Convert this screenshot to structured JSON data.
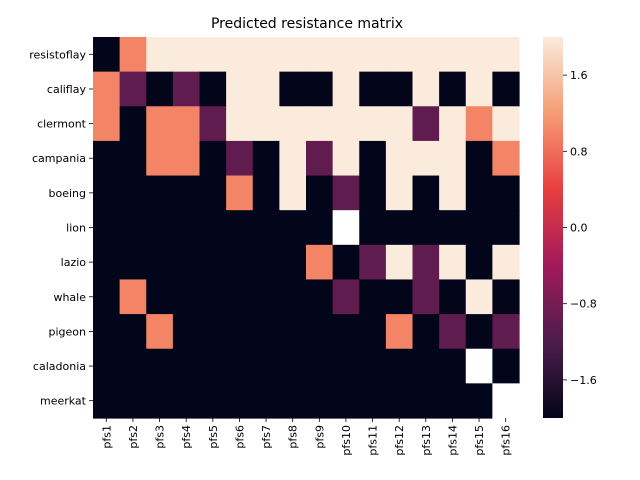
{
  "chart_data": {
    "type": "heatmap",
    "title": "Predicted resistance matrix",
    "xlabel": "",
    "ylabel": "",
    "x": [
      "pfs1",
      "pfs2",
      "pfs3",
      "pfs4",
      "pfs5",
      "pfs6",
      "pfs7",
      "pfs8",
      "pfs9",
      "pfs10",
      "pfs11",
      "pfs12",
      "pfs13",
      "pfs14",
      "pfs15",
      "pfs16"
    ],
    "y": [
      "resistoflay",
      "califlay",
      "clermont",
      "campania",
      "boeing",
      "lion",
      "lazio",
      "whale",
      "pigeon",
      "caladonia",
      "meerkat"
    ],
    "values": [
      [
        -2,
        1,
        2,
        2,
        2,
        2,
        2,
        2,
        2,
        2,
        2,
        2,
        2,
        2,
        2,
        2
      ],
      [
        1,
        -1,
        -2,
        -1,
        -2,
        2,
        2,
        -2,
        -2,
        2,
        -2,
        -2,
        2,
        -2,
        2,
        -2
      ],
      [
        1,
        -2,
        1,
        1,
        -1,
        2,
        2,
        2,
        2,
        2,
        2,
        2,
        -1,
        2,
        1,
        2
      ],
      [
        -2,
        -2,
        1,
        1,
        -2,
        -1,
        -2,
        2,
        -1,
        2,
        -2,
        2,
        2,
        2,
        -2,
        1
      ],
      [
        -2,
        -2,
        -2,
        -2,
        -2,
        1,
        -2,
        2,
        -2,
        -1,
        -2,
        2,
        -2,
        2,
        -2,
        -2
      ],
      [
        -2,
        -2,
        -2,
        -2,
        -2,
        -2,
        -2,
        -2,
        -2,
        null,
        -2,
        -2,
        -2,
        -2,
        -2,
        -2
      ],
      [
        -2,
        -2,
        -2,
        -2,
        -2,
        -2,
        -2,
        -2,
        1,
        -2,
        -1,
        2,
        -1,
        2,
        -2,
        2
      ],
      [
        -2,
        1,
        -2,
        -2,
        -2,
        -2,
        -2,
        -2,
        -2,
        -1,
        -2,
        -2,
        -1,
        -2,
        2,
        -2
      ],
      [
        -2,
        -2,
        1,
        -2,
        -2,
        -2,
        -2,
        -2,
        -2,
        -2,
        -2,
        1,
        -2,
        -1,
        -2,
        -1
      ],
      [
        -2,
        -2,
        -2,
        -2,
        -2,
        -2,
        -2,
        -2,
        -2,
        -2,
        -2,
        -2,
        -2,
        -2,
        null,
        -2
      ],
      [
        -2,
        -2,
        -2,
        -2,
        -2,
        -2,
        -2,
        -2,
        -2,
        -2,
        -2,
        -2,
        -2,
        -2,
        -2,
        null
      ]
    ],
    "vmin": -2,
    "vmax": 2,
    "colorbar_ticks": [
      1.6,
      0.8,
      0.0,
      -0.8,
      -1.6
    ],
    "colorbar_tick_labels": [
      "1.6",
      "0.8",
      "0.0",
      "−0.8",
      "−1.6"
    ],
    "colormap": "rocket",
    "colormap_stops": [
      "#03051a",
      "#4c1d4b",
      "#a11a5b",
      "#e83f3f",
      "#f69c73",
      "#faebdd"
    ],
    "missing_color": "#ffffff"
  }
}
